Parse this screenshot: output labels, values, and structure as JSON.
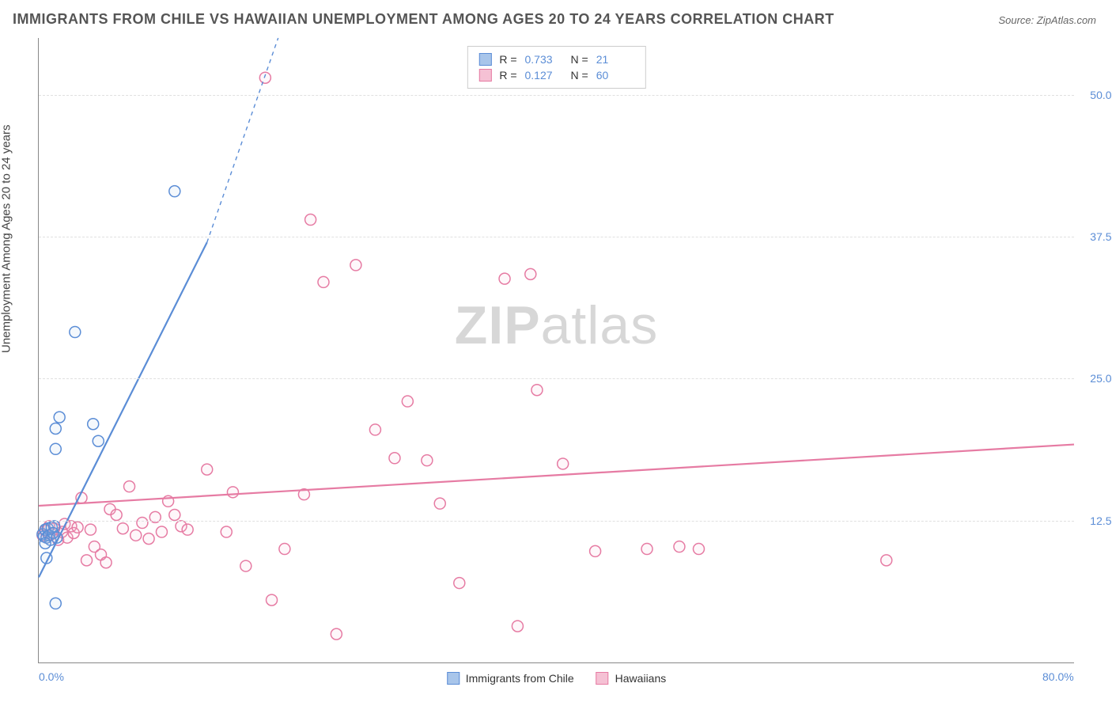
{
  "title": "IMMIGRANTS FROM CHILE VS HAWAIIAN UNEMPLOYMENT AMONG AGES 20 TO 24 YEARS CORRELATION CHART",
  "source": "Source: ZipAtlas.com",
  "ylabel": "Unemployment Among Ages 20 to 24 years",
  "watermark_bold": "ZIP",
  "watermark_light": "atlas",
  "chart": {
    "type": "scatter",
    "xlim": [
      0,
      80
    ],
    "ylim": [
      0,
      55
    ],
    "xticks": [
      {
        "v": 0,
        "label": "0.0%"
      },
      {
        "v": 80,
        "label": "80.0%"
      }
    ],
    "yticks": [
      {
        "v": 12.5,
        "label": "12.5%"
      },
      {
        "v": 25.0,
        "label": "25.0%"
      },
      {
        "v": 37.5,
        "label": "37.5%"
      },
      {
        "v": 50.0,
        "label": "50.0%"
      }
    ],
    "grid_color": "#e0e0e0",
    "background_color": "#ffffff",
    "marker_radius": 7,
    "marker_stroke_width": 1.5,
    "marker_fill_opacity": 0.12,
    "line_width": 2.2
  },
  "series": [
    {
      "name": "Immigrants from Chile",
      "color_stroke": "#5b8dd6",
      "color_fill": "#a8c5ea",
      "R": "0.733",
      "N": "21",
      "trend": {
        "x1": 0,
        "y1": 7.5,
        "x2": 13,
        "y2": 37,
        "dash_x2": 18.5,
        "dash_y2": 55
      },
      "points": [
        [
          0.3,
          11.3
        ],
        [
          0.4,
          11.1
        ],
        [
          0.5,
          11.7
        ],
        [
          0.6,
          11.0
        ],
        [
          0.7,
          11.8
        ],
        [
          0.8,
          11.2
        ],
        [
          1.0,
          11.9
        ],
        [
          1.2,
          12.0
        ],
        [
          0.6,
          9.2
        ],
        [
          1.3,
          5.2
        ],
        [
          1.3,
          18.8
        ],
        [
          1.3,
          20.6
        ],
        [
          1.6,
          21.6
        ],
        [
          2.8,
          29.1
        ],
        [
          4.2,
          21.0
        ],
        [
          4.6,
          19.5
        ],
        [
          0.9,
          10.8
        ],
        [
          1.1,
          11.4
        ],
        [
          1.4,
          11.0
        ],
        [
          0.5,
          10.5
        ],
        [
          10.5,
          41.5
        ]
      ]
    },
    {
      "name": "Hawaiians",
      "color_stroke": "#e67ba3",
      "color_fill": "#f5c1d4",
      "R": "0.127",
      "N": "60",
      "trend": {
        "x1": 0,
        "y1": 13.8,
        "x2": 80,
        "y2": 19.2
      },
      "points": [
        [
          0.3,
          11.2
        ],
        [
          0.5,
          11.6
        ],
        [
          0.6,
          11.0
        ],
        [
          0.8,
          12.0
        ],
        [
          1.0,
          11.3
        ],
        [
          1.2,
          11.8
        ],
        [
          1.5,
          10.8
        ],
        [
          1.8,
          11.5
        ],
        [
          2.0,
          12.2
        ],
        [
          2.2,
          11.0
        ],
        [
          2.5,
          12.0
        ],
        [
          2.7,
          11.4
        ],
        [
          3.0,
          11.9
        ],
        [
          3.3,
          14.5
        ],
        [
          3.7,
          9.0
        ],
        [
          4.0,
          11.7
        ],
        [
          4.3,
          10.2
        ],
        [
          4.8,
          9.5
        ],
        [
          5.2,
          8.8
        ],
        [
          5.5,
          13.5
        ],
        [
          6.0,
          13.0
        ],
        [
          6.5,
          11.8
        ],
        [
          7.0,
          15.5
        ],
        [
          7.5,
          11.2
        ],
        [
          8.0,
          12.3
        ],
        [
          8.5,
          10.9
        ],
        [
          9.0,
          12.8
        ],
        [
          9.5,
          11.5
        ],
        [
          10.0,
          14.2
        ],
        [
          10.5,
          13.0
        ],
        [
          11.0,
          12.0
        ],
        [
          11.5,
          11.7
        ],
        [
          13.0,
          17.0
        ],
        [
          14.5,
          11.5
        ],
        [
          15.0,
          15.0
        ],
        [
          16.0,
          8.5
        ],
        [
          17.5,
          51.5
        ],
        [
          18.0,
          5.5
        ],
        [
          19.0,
          10.0
        ],
        [
          20.5,
          14.8
        ],
        [
          21.0,
          39.0
        ],
        [
          22.0,
          33.5
        ],
        [
          23.0,
          2.5
        ],
        [
          24.5,
          35.0
        ],
        [
          26.0,
          20.5
        ],
        [
          27.5,
          18.0
        ],
        [
          28.5,
          23.0
        ],
        [
          30.0,
          17.8
        ],
        [
          31.0,
          14.0
        ],
        [
          32.5,
          7.0
        ],
        [
          36.0,
          33.8
        ],
        [
          37.0,
          3.2
        ],
        [
          38.5,
          24.0
        ],
        [
          40.5,
          17.5
        ],
        [
          43.0,
          9.8
        ],
        [
          47.0,
          10.0
        ],
        [
          49.5,
          10.2
        ],
        [
          51.0,
          10.0
        ],
        [
          65.5,
          9.0
        ],
        [
          38.0,
          34.2
        ]
      ]
    }
  ],
  "stats_labels": {
    "R": "R =",
    "N": "N ="
  },
  "legend": {
    "series1": "Immigrants from Chile",
    "series2": "Hawaiians"
  }
}
